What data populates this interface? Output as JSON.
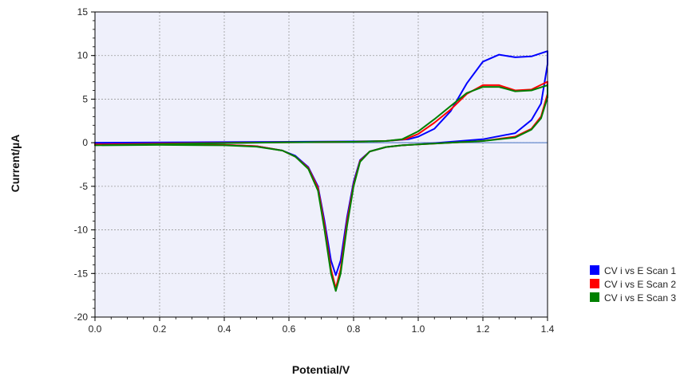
{
  "chart_data": {
    "type": "line",
    "title": "",
    "xlabel": "Potential/V",
    "ylabel": "Current/µA",
    "xlim": [
      0,
      1.4
    ],
    "ylim": [
      -20,
      15
    ],
    "xticks": [
      "0.0",
      "0.2",
      "0.4",
      "0.6",
      "0.8",
      "1.0",
      "1.2",
      "1.4"
    ],
    "yticks": [
      "15",
      "10",
      "5",
      "0",
      "-5",
      "-10",
      "-15",
      "-20"
    ],
    "grid": true,
    "legend_position": "right",
    "background": "#eff0fb",
    "zero_line_color": "#4472c4",
    "series": [
      {
        "name": "CV i vs E Scan 1",
        "color": "#0000ff",
        "points": [
          [
            0.0,
            0.0
          ],
          [
            0.3,
            0.05
          ],
          [
            0.6,
            0.1
          ],
          [
            0.8,
            0.15
          ],
          [
            0.9,
            0.2
          ],
          [
            0.97,
            0.4
          ],
          [
            1.0,
            0.7
          ],
          [
            1.05,
            1.6
          ],
          [
            1.1,
            3.6
          ],
          [
            1.15,
            6.8
          ],
          [
            1.2,
            9.3
          ],
          [
            1.25,
            10.1
          ],
          [
            1.3,
            9.8
          ],
          [
            1.35,
            9.9
          ],
          [
            1.4,
            10.5
          ],
          [
            1.4,
            9.0
          ],
          [
            1.38,
            4.5
          ],
          [
            1.35,
            2.6
          ],
          [
            1.3,
            1.1
          ],
          [
            1.2,
            0.4
          ],
          [
            1.1,
            0.1
          ],
          [
            1.0,
            -0.2
          ],
          [
            0.95,
            -0.3
          ],
          [
            0.9,
            -0.5
          ],
          [
            0.85,
            -1.0
          ],
          [
            0.82,
            -2.0
          ],
          [
            0.8,
            -4.5
          ],
          [
            0.78,
            -8.5
          ],
          [
            0.76,
            -13.5
          ],
          [
            0.745,
            -15.2
          ],
          [
            0.73,
            -13.5
          ],
          [
            0.71,
            -9.0
          ],
          [
            0.69,
            -5.0
          ],
          [
            0.66,
            -2.8
          ],
          [
            0.62,
            -1.5
          ],
          [
            0.58,
            -0.9
          ],
          [
            0.5,
            -0.4
          ],
          [
            0.4,
            -0.25
          ],
          [
            0.2,
            -0.15
          ],
          [
            0.0,
            -0.05
          ]
        ]
      },
      {
        "name": "CV i vs E Scan 2",
        "color": "#ff0000",
        "points": [
          [
            0.0,
            -0.2
          ],
          [
            0.3,
            -0.05
          ],
          [
            0.6,
            0.05
          ],
          [
            0.8,
            0.1
          ],
          [
            0.9,
            0.2
          ],
          [
            0.96,
            0.4
          ],
          [
            1.0,
            1.0
          ],
          [
            1.05,
            2.3
          ],
          [
            1.1,
            3.8
          ],
          [
            1.15,
            5.6
          ],
          [
            1.2,
            6.6
          ],
          [
            1.25,
            6.6
          ],
          [
            1.3,
            6.0
          ],
          [
            1.35,
            6.1
          ],
          [
            1.4,
            7.0
          ],
          [
            1.4,
            5.6
          ],
          [
            1.38,
            3.0
          ],
          [
            1.35,
            1.6
          ],
          [
            1.3,
            0.7
          ],
          [
            1.2,
            0.2
          ],
          [
            1.1,
            0.0
          ],
          [
            1.0,
            -0.2
          ],
          [
            0.95,
            -0.3
          ],
          [
            0.9,
            -0.5
          ],
          [
            0.85,
            -1.0
          ],
          [
            0.82,
            -2.1
          ],
          [
            0.8,
            -4.8
          ],
          [
            0.78,
            -9.0
          ],
          [
            0.76,
            -14.5
          ],
          [
            0.745,
            -16.7
          ],
          [
            0.73,
            -14.5
          ],
          [
            0.71,
            -9.5
          ],
          [
            0.69,
            -5.2
          ],
          [
            0.66,
            -2.9
          ],
          [
            0.62,
            -1.6
          ],
          [
            0.58,
            -0.9
          ],
          [
            0.5,
            -0.4
          ],
          [
            0.4,
            -0.25
          ],
          [
            0.2,
            -0.2
          ],
          [
            0.0,
            -0.2
          ]
        ]
      },
      {
        "name": "CV i vs E Scan 3",
        "color": "#008000",
        "points": [
          [
            0.0,
            -0.3
          ],
          [
            0.3,
            -0.1
          ],
          [
            0.6,
            0.05
          ],
          [
            0.8,
            0.1
          ],
          [
            0.9,
            0.2
          ],
          [
            0.95,
            0.4
          ],
          [
            1.0,
            1.3
          ],
          [
            1.05,
            2.7
          ],
          [
            1.1,
            4.2
          ],
          [
            1.15,
            5.7
          ],
          [
            1.2,
            6.4
          ],
          [
            1.25,
            6.4
          ],
          [
            1.3,
            5.9
          ],
          [
            1.35,
            6.0
          ],
          [
            1.4,
            6.6
          ],
          [
            1.4,
            5.2
          ],
          [
            1.38,
            2.8
          ],
          [
            1.35,
            1.5
          ],
          [
            1.3,
            0.6
          ],
          [
            1.2,
            0.2
          ],
          [
            1.1,
            0.0
          ],
          [
            1.0,
            -0.2
          ],
          [
            0.95,
            -0.3
          ],
          [
            0.9,
            -0.5
          ],
          [
            0.85,
            -1.0
          ],
          [
            0.82,
            -2.2
          ],
          [
            0.8,
            -5.0
          ],
          [
            0.78,
            -9.5
          ],
          [
            0.76,
            -15.0
          ],
          [
            0.745,
            -17.0
          ],
          [
            0.73,
            -15.0
          ],
          [
            0.71,
            -10.0
          ],
          [
            0.69,
            -5.5
          ],
          [
            0.66,
            -3.0
          ],
          [
            0.62,
            -1.6
          ],
          [
            0.58,
            -0.9
          ],
          [
            0.5,
            -0.45
          ],
          [
            0.4,
            -0.3
          ],
          [
            0.2,
            -0.25
          ],
          [
            0.0,
            -0.3
          ]
        ]
      }
    ]
  }
}
